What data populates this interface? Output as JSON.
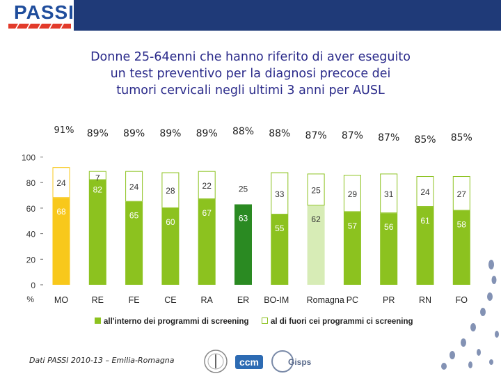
{
  "header": {
    "logo_text": "PASSI"
  },
  "title_lines": [
    "Donne 25-64enni che hanno riferito di aver eseguito",
    "un test preventivo per la diagnosi precoce dei",
    "tumori cervicali negli ultimi 3 anni per AUSL"
  ],
  "footer": {
    "source": "Dati PASSI 2010-13 – Emilia-Romagna",
    "partner_logos": [
      "Istituto Superiore di Sanità",
      "ccm",
      "Gisps"
    ]
  },
  "colors": {
    "brand_blue": "#1f3a78",
    "title_text": "#2a2a8a",
    "inside_screening_green": "#8cc21f",
    "outside_screening_fill": "#ffffff",
    "region_inside": "#f8c81b",
    "region_outside": "#ffffff",
    "er_inside": "#2a8a22",
    "romagna_inside": "#d7ecb6",
    "romagna_outside": "#ffffff"
  },
  "chart_data": {
    "type": "bar",
    "stacked": true,
    "title": "Donne 25-64enni che hanno riferito di aver eseguito un test preventivo per la diagnosi precoce dei tumori cervicali negli ultimi 3 anni per AUSL",
    "categories": [
      "MO",
      "RE",
      "FE",
      "CE",
      "RA",
      "ER",
      "BO-IM",
      "Romagna",
      "PC",
      "PR",
      "RN",
      "FO"
    ],
    "series": [
      {
        "name": "all'interno dei programmi di screening",
        "values": [
          68,
          82,
          65,
          60,
          67,
          63,
          55,
          62,
          57,
          56,
          61,
          58
        ]
      },
      {
        "name": "al di fuori cei programmi ci screening",
        "values": [
          24,
          7,
          24,
          28,
          22,
          25,
          33,
          25,
          29,
          31,
          24,
          27
        ]
      }
    ],
    "totals": [
      "91%",
      "89%",
      "89%",
      "89%",
      "89%",
      "88%",
      "88%",
      "87%",
      "87%",
      "87%",
      "85%",
      "85%"
    ],
    "ylabel": "%",
    "yticks": [
      0,
      20,
      40,
      60,
      80,
      100
    ],
    "ylim": [
      0,
      100
    ],
    "legend_position": "bottom",
    "highlight": {
      "MO": "region",
      "ER": "regional-total",
      "Romagna": "aggregate"
    }
  }
}
